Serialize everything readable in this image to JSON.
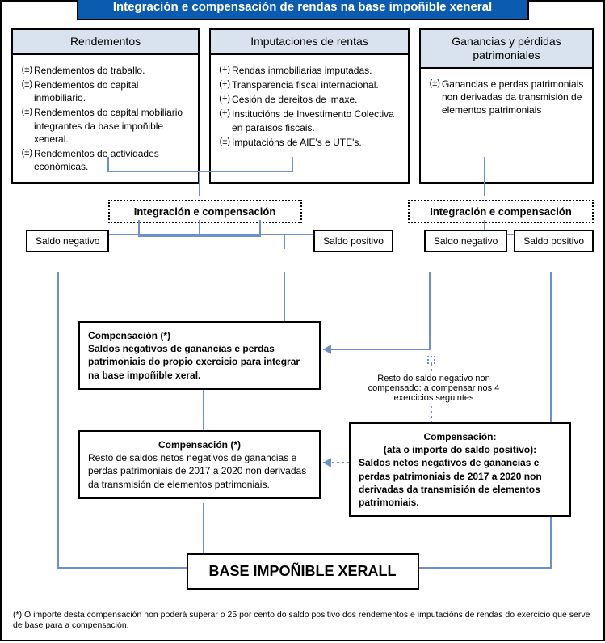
{
  "colors": {
    "title_bg": "#0b5cb0",
    "header_bg": "#d9e3f0",
    "connector": "#6e8fcc",
    "border": "#000000"
  },
  "title": "Integración e compensación de rendas na base impoñible xeneral",
  "columns": {
    "c1": {
      "header": "Rendementos",
      "items": [
        {
          "sign": "(±)",
          "text": "Rendementos do traballo."
        },
        {
          "sign": "(±)",
          "text": "Rendementos do capital inmobiliario."
        },
        {
          "sign": "(±)",
          "text": "Rendementos do capital mobiliario integrantes da base impoñible xeneral."
        },
        {
          "sign": "(±)",
          "text": "Rendementos de actividades económicas."
        }
      ]
    },
    "c2": {
      "header": "Imputaciones de rentas",
      "items": [
        {
          "sign": "(+)",
          "text": "Rendas inmobiliarias imputadas."
        },
        {
          "sign": "(+)",
          "text": "Transparencia fiscal internacional."
        },
        {
          "sign": "(+)",
          "text": "Cesión de dereitos de imaxe."
        },
        {
          "sign": "(+)",
          "text": "Institucións de Investimento Colectiva en paraísos fiscais."
        },
        {
          "sign": "(±)",
          "text": "Imputacións de AIE's e UTE's."
        }
      ]
    },
    "c3": {
      "header": "Ganancias y pérdidas patrimoniales",
      "items": [
        {
          "sign": "(±)",
          "text": "Ganancias e perdas patrimoniais non derivadas da transmisión de elementos patrimoniais"
        }
      ]
    }
  },
  "integ": {
    "left": "Integración e compensación",
    "right": "Integración e compensación"
  },
  "saldos": {
    "left_neg": "Saldo negativo",
    "left_pos": "Saldo positivo",
    "right_neg": "Saldo negativo",
    "right_pos": "Saldo positivo"
  },
  "comp1": {
    "title": "Compensación (*)",
    "text": "Saldos negativos de ganancias e perdas patrimoniais do propio exercicio para integrar na base impoñible xeral."
  },
  "resto": "Resto do saldo negativo non compensado: a compensar nos 4 exercicios seguintes",
  "comp2_left": {
    "title": "Compensación (*)",
    "text": "Resto de saldos netos negativos de ganancias e perdas patrimoniais de 2017 a 2020 non derivadas da transmisión de elementos patrimoniais."
  },
  "comp2_right": {
    "title1": "Compensación:",
    "title2": "(ata o importe do saldo positivo):",
    "text": "Saldos netos negativos de ganancias e perdas patrimoniais de 2017 a 2020 non derivadas da transmisión de elementos patrimoniais."
  },
  "final": "BASE IMPOÑIBLE XERALL",
  "footnote": "(*) O importe desta compensación non poderá superar o 25 por cento do saldo positivo dos rendementos e imputacións de rendas do exercicio que serve de base para a compensación."
}
